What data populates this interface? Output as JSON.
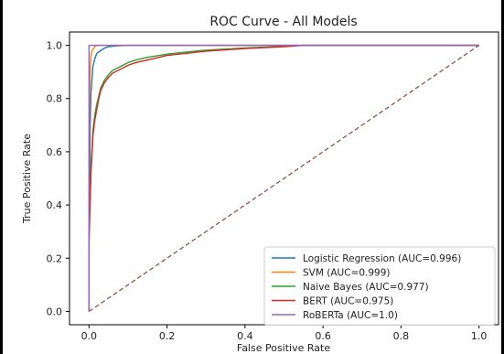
{
  "chart_data": {
    "type": "line",
    "title": "ROC Curve - All Models",
    "xlabel": "False Positive Rate",
    "ylabel": "True Positive Rate",
    "xlim": [
      -0.05,
      1.05
    ],
    "ylim": [
      -0.05,
      1.05
    ],
    "xticks": [
      "0.0",
      "0.2",
      "0.4",
      "0.6",
      "0.8",
      "1.0"
    ],
    "yticks": [
      "0.0",
      "0.2",
      "0.4",
      "0.6",
      "0.8",
      "1.0"
    ],
    "grid": false,
    "legend_position": "lower-right",
    "series": [
      {
        "name": "Logistic Regression (AUC=0.996)",
        "color": "#1f77b4",
        "x": [
          0.0,
          0.0,
          0.003,
          0.005,
          0.008,
          0.01,
          0.015,
          0.02,
          0.03,
          0.04,
          0.05,
          0.07,
          0.1,
          0.15,
          1.0
        ],
        "y": [
          0.0,
          0.3,
          0.7,
          0.82,
          0.88,
          0.92,
          0.95,
          0.97,
          0.98,
          0.99,
          0.995,
          0.998,
          1.0,
          1.0,
          1.0
        ]
      },
      {
        "name": "SVM (AUC=0.999)",
        "color": "#ff7f0e",
        "x": [
          0.0,
          0.0,
          0.002,
          0.004,
          0.006,
          0.01,
          0.015,
          0.02,
          0.03,
          1.0
        ],
        "y": [
          0.0,
          0.55,
          0.85,
          0.94,
          0.97,
          0.985,
          0.995,
          1.0,
          1.0,
          1.0
        ]
      },
      {
        "name": "Naive Bayes (AUC=0.977)",
        "color": "#2ca02c",
        "x": [
          0.0,
          0.0,
          0.003,
          0.005,
          0.008,
          0.01,
          0.015,
          0.02,
          0.025,
          0.03,
          0.04,
          0.05,
          0.06,
          0.08,
          0.1,
          0.12,
          0.15,
          0.2,
          0.25,
          0.3,
          0.4,
          0.5,
          0.55,
          1.0
        ],
        "y": [
          0.0,
          0.3,
          0.45,
          0.55,
          0.62,
          0.68,
          0.74,
          0.78,
          0.81,
          0.84,
          0.87,
          0.89,
          0.905,
          0.92,
          0.935,
          0.945,
          0.955,
          0.967,
          0.975,
          0.982,
          0.99,
          0.996,
          1.0,
          1.0
        ]
      },
      {
        "name": "BERT (AUC=0.975)",
        "color": "#d62728",
        "x": [
          0.0,
          0.0,
          0.003,
          0.005,
          0.008,
          0.01,
          0.015,
          0.02,
          0.025,
          0.03,
          0.04,
          0.05,
          0.06,
          0.08,
          0.1,
          0.12,
          0.15,
          0.18,
          0.2,
          0.25,
          0.3,
          0.4,
          0.5,
          0.55,
          1.0
        ],
        "y": [
          0.0,
          0.25,
          0.42,
          0.52,
          0.6,
          0.66,
          0.72,
          0.76,
          0.8,
          0.83,
          0.86,
          0.88,
          0.895,
          0.91,
          0.925,
          0.935,
          0.945,
          0.955,
          0.962,
          0.97,
          0.978,
          0.988,
          0.995,
          1.0,
          1.0
        ]
      },
      {
        "name": "RoBERTa (AUC=1.0)",
        "color": "#9467bd",
        "x": [
          0.0,
          0.0,
          1.0
        ],
        "y": [
          0.0,
          1.0,
          1.0
        ]
      },
      {
        "name": "",
        "color": "#8c564b",
        "dashed": true,
        "x": [
          0.0,
          1.0
        ],
        "y": [
          0.0,
          1.0
        ]
      }
    ]
  }
}
